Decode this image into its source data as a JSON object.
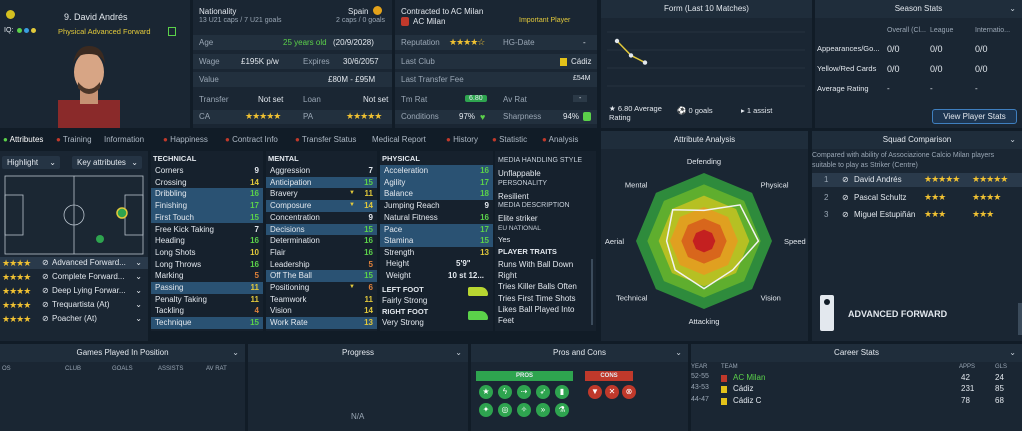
{
  "player": {
    "name": "9. David Andrés",
    "role": "Physical Advanced Forward",
    "iq_label": "IQ:"
  },
  "bio": {
    "nationality_label": "Nationality",
    "nationality": "Spain",
    "caps": "13 U21 caps / 7 U21 goals",
    "caps2": "2 caps / 0 goals",
    "age_label": "Age",
    "age": "25 years old",
    "dob": "(20/9/2028)",
    "wage_label": "Wage",
    "wage": "£195K p/w",
    "expires_label": "Expires",
    "expires": "30/6/2057",
    "value_label": "Value",
    "value": "£80M - £95M",
    "transfer_label": "Transfer",
    "transfer": "Not set",
    "loan_label": "Loan",
    "loan": "Not set",
    "ca_label": "CA",
    "pa_label": "PA"
  },
  "contract": {
    "title": "Contracted to AC Milan",
    "club": "AC Milan",
    "status": "Important Player",
    "reputation_label": "Reputation",
    "hg_label": "HG-Date",
    "hg_value": "-",
    "last_club_label": "Last Club",
    "last_club": "Cádiz",
    "last_fee_label": "Last Transfer Fee",
    "last_fee": "£54M",
    "tm_rat_label": "Tm Rat",
    "tm_rat": "6.80",
    "av_rat_label": "Av Rat",
    "av_rat": "-",
    "conditions_label": "Conditions",
    "conditions": "97%",
    "sharpness_label": "Sharpness",
    "sharpness": "94%"
  },
  "form": {
    "title": "Form (Last 10 Matches)",
    "avg": "6.80 Average Rating",
    "goals": "0 goals",
    "assists": "1 assist",
    "y_values": [
      8.0,
      7.2,
      6.8
    ]
  },
  "season": {
    "title": "Season Stats",
    "cols": [
      "Overall (Cl...",
      "League",
      "Internatio..."
    ],
    "rows": [
      {
        "label": "Appearances/Go...",
        "v": [
          "0/0",
          "0/0",
          "0/0"
        ]
      },
      {
        "label": "Yellow/Red Cards",
        "v": [
          "0/0",
          "0/0",
          "0/0"
        ]
      },
      {
        "label": "Average Rating",
        "v": [
          "-",
          "-",
          "-"
        ]
      }
    ],
    "button": "View Player Stats"
  },
  "tabs": [
    "Attributes",
    "Training",
    "Information",
    "Happiness",
    "Contract Info",
    "Transfer Status",
    "Medical Report",
    "History",
    "Statistic",
    "Analysis"
  ],
  "left": {
    "highlight": "Highlight",
    "key_attr": "Key attributes",
    "roles": [
      "Advanced Forward...",
      "Complete Forward...",
      "Deep Lying Forwar...",
      "Trequartista (At)",
      "Poacher (At)"
    ]
  },
  "technical": {
    "title": "TECHNICAL",
    "rows": [
      {
        "l": "Corners",
        "v": "9"
      },
      {
        "l": "Crossing",
        "v": "14"
      },
      {
        "l": "Dribbling",
        "v": "16"
      },
      {
        "l": "Finishing",
        "v": "17"
      },
      {
        "l": "First Touch",
        "v": "15"
      },
      {
        "l": "Free Kick Taking",
        "v": "7"
      },
      {
        "l": "Heading",
        "v": "16"
      },
      {
        "l": "Long Shots",
        "v": "10"
      },
      {
        "l": "Long Throws",
        "v": "16"
      },
      {
        "l": "Marking",
        "v": "5"
      },
      {
        "l": "Passing",
        "v": "11"
      },
      {
        "l": "Penalty Taking",
        "v": "11"
      },
      {
        "l": "Tackling",
        "v": "4"
      },
      {
        "l": "Technique",
        "v": "15"
      }
    ]
  },
  "mental": {
    "title": "MENTAL",
    "rows": [
      {
        "l": "Aggression",
        "v": "7"
      },
      {
        "l": "Anticipation",
        "v": "15"
      },
      {
        "l": "Bravery",
        "v": "11"
      },
      {
        "l": "Composure",
        "v": "14"
      },
      {
        "l": "Concentration",
        "v": "9"
      },
      {
        "l": "Decisions",
        "v": "15"
      },
      {
        "l": "Determination",
        "v": "16"
      },
      {
        "l": "Flair",
        "v": "16"
      },
      {
        "l": "Leadership",
        "v": "5"
      },
      {
        "l": "Off The Ball",
        "v": "15"
      },
      {
        "l": "Positioning",
        "v": "6"
      },
      {
        "l": "Teamwork",
        "v": "11"
      },
      {
        "l": "Vision",
        "v": "14"
      },
      {
        "l": "Work Rate",
        "v": "13"
      }
    ]
  },
  "physical": {
    "title": "PHYSICAL",
    "rows": [
      {
        "l": "Acceleration",
        "v": "16"
      },
      {
        "l": "Agility",
        "v": "17"
      },
      {
        "l": "Balance",
        "v": "18"
      },
      {
        "l": "Jumping Reach",
        "v": "9"
      },
      {
        "l": "Natural Fitness",
        "v": "16"
      },
      {
        "l": "Pace",
        "v": "17"
      },
      {
        "l": "Stamina",
        "v": "15"
      },
      {
        "l": "Strength",
        "v": "13"
      }
    ],
    "height_label": "Height",
    "height": "5'9\"",
    "weight_label": "Weight",
    "weight": "10 st 12...",
    "left_foot_label": "LEFT FOOT",
    "left_foot": "Fairly Strong",
    "right_foot_label": "RIGHT FOOT",
    "right_foot": "Very Strong"
  },
  "media": {
    "style_title": "MEDIA HANDLING STYLE",
    "style": "Unflappable",
    "personality_title": "PERSONALITY",
    "personality": "Resilient",
    "desc_title": "MEDIA DESCRIPTION",
    "desc": "Elite striker",
    "eu_title": "EU NATIONAL",
    "eu": "Yes",
    "traits_title": "PLAYER TRAITS",
    "traits": [
      "Runs With Ball Down Right",
      "Tries Killer Balls Often",
      "Tries First Time Shots",
      "Likes Ball Played Into Feet"
    ]
  },
  "attr_analysis": {
    "title": "Attribute Analysis",
    "axes": [
      "Defending",
      "Physical",
      "Speed",
      "Vision",
      "Attacking",
      "Technical",
      "Aerial",
      "Mental"
    ],
    "values": [
      0.45,
      0.75,
      0.8,
      0.6,
      0.7,
      0.6,
      0.55,
      0.65
    ]
  },
  "squad": {
    "title": "Squad Comparison",
    "desc": "Compared with ability of Associazione Calcio Milan players suitable to play as Striker (Centre)",
    "players": [
      {
        "n": "1",
        "name": "David Andrés",
        "s1": "★★★★★",
        "s2": "★★★★★"
      },
      {
        "n": "2",
        "name": "Pascal Schultz",
        "s1": "★★★",
        "s2": "★★★★"
      },
      {
        "n": "3",
        "name": "Miguel Estupiñán",
        "s1": "★★★",
        "s2": "★★★"
      }
    ],
    "role": "ADVANCED FORWARD"
  },
  "games": {
    "title": "Games Played In Position",
    "cols": [
      "OS",
      "CLUB",
      "GOALS",
      "ASSISTS",
      "AV RAT"
    ]
  },
  "progress": {
    "title": "Progress",
    "na": "N/A"
  },
  "pros_cons": {
    "title": "Pros and Cons",
    "pros": "PROS",
    "cons": "CONS"
  },
  "career": {
    "title": "Career Stats",
    "cols": [
      "YEAR",
      "TEAM",
      "APPS",
      "GLS"
    ],
    "rows": [
      {
        "y": "52-55",
        "t": "AC Milan",
        "a": "42",
        "g": "24"
      },
      {
        "y": "43-53",
        "t": "Cádiz",
        "a": "231",
        "g": "85"
      },
      {
        "y": "44-47",
        "t": "Cádiz C",
        "a": "78",
        "g": "68"
      }
    ]
  },
  "colors": {
    "accent": "#5bd14a",
    "star": "#f1c232",
    "panel": "#1a2633",
    "bg": "#111c27"
  }
}
